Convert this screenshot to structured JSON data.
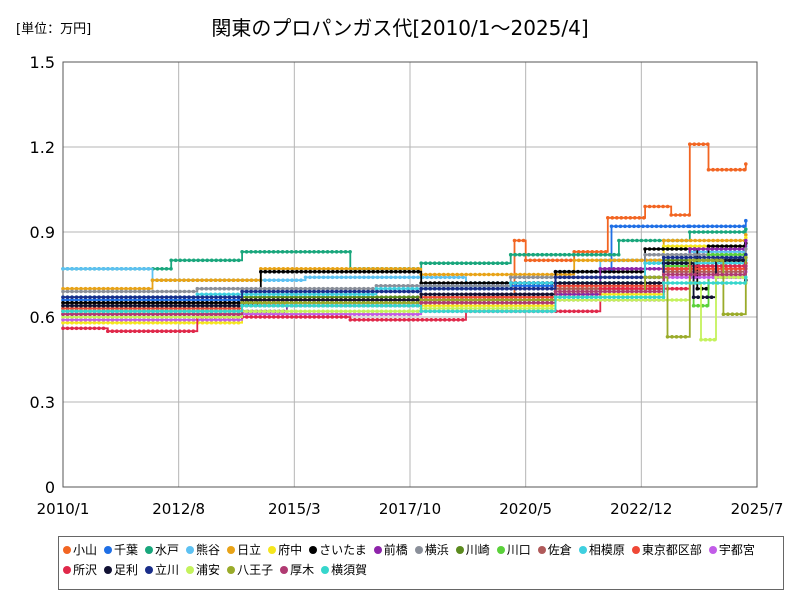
{
  "chart_data": {
    "type": "line",
    "title": "関東のプロパンガス代[2010/1～2025/4]",
    "unit_label": "[単位：万円]",
    "xlabel": "",
    "ylabel": "",
    "ylim": [
      0,
      1.5
    ],
    "y_ticks": [
      "0",
      "0.3",
      "0.6",
      "0.9",
      "1.2",
      "1.5"
    ],
    "x_ticks": [
      "2010/1",
      "2012/8",
      "2015/3",
      "2017/10",
      "2020/5",
      "2022/12",
      "2025/7"
    ],
    "x_range": [
      "2010/1",
      "2025/7"
    ],
    "grid": true,
    "legend_position": "bottom",
    "series": [
      {
        "name": "小山",
        "color": "#f26522",
        "points": [
          [
            "2010/1",
            0.65
          ],
          [
            "2015/1",
            0.66
          ],
          [
            "2019/6",
            0.67
          ],
          [
            "2020/2",
            0.87
          ],
          [
            "2020/5",
            0.8
          ],
          [
            "2021/6",
            0.83
          ],
          [
            "2022/3",
            0.95
          ],
          [
            "2023/1",
            0.99
          ],
          [
            "2023/8",
            0.96
          ],
          [
            "2024/1",
            1.21
          ],
          [
            "2024/6",
            1.12
          ],
          [
            "2025/4",
            1.14
          ]
        ]
      },
      {
        "name": "千葉",
        "color": "#1f6fe5",
        "points": [
          [
            "2010/1",
            0.66
          ],
          [
            "2014/1",
            0.69
          ],
          [
            "2018/1",
            0.71
          ],
          [
            "2021/1",
            0.76
          ],
          [
            "2022/4",
            0.92
          ],
          [
            "2024/1",
            0.92
          ],
          [
            "2025/4",
            0.94
          ]
        ]
      },
      {
        "name": "水戸",
        "color": "#19a67c",
        "points": [
          [
            "2010/1",
            0.77
          ],
          [
            "2012/6",
            0.8
          ],
          [
            "2014/1",
            0.83
          ],
          [
            "2016/6",
            0.77
          ],
          [
            "2018/1",
            0.79
          ],
          [
            "2020/1",
            0.82
          ],
          [
            "2022/6",
            0.87
          ],
          [
            "2024/1",
            0.9
          ],
          [
            "2025/4",
            0.91
          ]
        ]
      },
      {
        "name": "熊谷",
        "color": "#5dc1f2",
        "points": [
          [
            "2010/1",
            0.77
          ],
          [
            "2012/1",
            0.73
          ],
          [
            "2015/6",
            0.74
          ],
          [
            "2019/1",
            0.72
          ],
          [
            "2022/1",
            0.8
          ],
          [
            "2024/1",
            0.83
          ],
          [
            "2025/4",
            0.85
          ]
        ]
      },
      {
        "name": "日立",
        "color": "#e8a317",
        "points": [
          [
            "2010/1",
            0.7
          ],
          [
            "2012/1",
            0.73
          ],
          [
            "2014/6",
            0.77
          ],
          [
            "2018/1",
            0.75
          ],
          [
            "2021/6",
            0.8
          ],
          [
            "2023/6",
            0.87
          ],
          [
            "2025/4",
            0.89
          ]
        ]
      },
      {
        "name": "府中",
        "color": "#f5e61e",
        "points": [
          [
            "2010/1",
            0.58
          ],
          [
            "2014/1",
            0.61
          ],
          [
            "2018/1",
            0.64
          ],
          [
            "2021/1",
            0.68
          ],
          [
            "2023/6",
            0.85
          ],
          [
            "2025/4",
            0.88
          ]
        ]
      },
      {
        "name": "さいたま",
        "color": "#000000",
        "points": [
          [
            "2010/1",
            0.65
          ],
          [
            "2014/6",
            0.76
          ],
          [
            "2018/1",
            0.72
          ],
          [
            "2021/1",
            0.76
          ],
          [
            "2023/1",
            0.84
          ],
          [
            "2024/3",
            0.7
          ],
          [
            "2024/6",
            0.85
          ],
          [
            "2025/4",
            0.86
          ]
        ]
      },
      {
        "name": "前橋",
        "color": "#8e24aa",
        "points": [
          [
            "2010/1",
            0.62
          ],
          [
            "2015/1",
            0.66
          ],
          [
            "2019/1",
            0.68
          ],
          [
            "2022/1",
            0.77
          ],
          [
            "2024/1",
            0.84
          ],
          [
            "2025/4",
            0.87
          ]
        ]
      },
      {
        "name": "横浜",
        "color": "#8a8f99",
        "points": [
          [
            "2010/1",
            0.69
          ],
          [
            "2013/1",
            0.7
          ],
          [
            "2017/1",
            0.71
          ],
          [
            "2020/1",
            0.74
          ],
          [
            "2023/1",
            0.82
          ],
          [
            "2025/4",
            0.84
          ]
        ]
      },
      {
        "name": "川崎",
        "color": "#5b8a1e",
        "points": [
          [
            "2010/1",
            0.64
          ],
          [
            "2014/1",
            0.67
          ],
          [
            "2018/1",
            0.66
          ],
          [
            "2021/1",
            0.72
          ],
          [
            "2023/6",
            0.8
          ],
          [
            "2025/4",
            0.81
          ]
        ]
      },
      {
        "name": "川口",
        "color": "#5ad13a",
        "points": [
          [
            "2010/1",
            0.63
          ],
          [
            "2014/1",
            0.65
          ],
          [
            "2018/1",
            0.66
          ],
          [
            "2021/1",
            0.7
          ],
          [
            "2023/6",
            0.78
          ],
          [
            "2024/2",
            0.64
          ],
          [
            "2024/6",
            0.82
          ],
          [
            "2025/4",
            0.81
          ]
        ]
      },
      {
        "name": "佐倉",
        "color": "#b05a5a",
        "points": [
          [
            "2010/1",
            0.61
          ],
          [
            "2014/1",
            0.64
          ],
          [
            "2018/1",
            0.66
          ],
          [
            "2021/1",
            0.7
          ],
          [
            "2023/6",
            0.76
          ],
          [
            "2025/4",
            0.77
          ]
        ]
      },
      {
        "name": "相模原",
        "color": "#3fd0e0",
        "points": [
          [
            "2010/1",
            0.67
          ],
          [
            "2013/1",
            0.68
          ],
          [
            "2017/1",
            0.7
          ],
          [
            "2020/1",
            0.72
          ],
          [
            "2023/1",
            0.79
          ],
          [
            "2025/4",
            0.8
          ]
        ]
      },
      {
        "name": "東京都区部",
        "color": "#ef4836",
        "points": [
          [
            "2010/1",
            0.63
          ],
          [
            "2014/1",
            0.66
          ],
          [
            "2018/1",
            0.67
          ],
          [
            "2021/1",
            0.71
          ],
          [
            "2023/6",
            0.77
          ],
          [
            "2025/4",
            0.78
          ]
        ]
      },
      {
        "name": "宇都宮",
        "color": "#c25ce8",
        "points": [
          [
            "2010/1",
            0.59
          ],
          [
            "2014/1",
            0.61
          ],
          [
            "2018/1",
            0.62
          ],
          [
            "2021/1",
            0.66
          ],
          [
            "2023/6",
            0.74
          ],
          [
            "2025/4",
            0.76
          ]
        ]
      },
      {
        "name": "所沢",
        "color": "#e0284a",
        "points": [
          [
            "2010/1",
            0.56
          ],
          [
            "2011/1",
            0.55
          ],
          [
            "2013/1",
            0.6
          ],
          [
            "2016/6",
            0.59
          ],
          [
            "2019/1",
            0.62
          ],
          [
            "2022/1",
            0.7
          ],
          [
            "2024/1",
            0.78
          ],
          [
            "2025/4",
            0.79
          ]
        ]
      },
      {
        "name": "足利",
        "color": "#111133",
        "points": [
          [
            "2010/1",
            0.64
          ],
          [
            "2014/1",
            0.66
          ],
          [
            "2018/1",
            0.68
          ],
          [
            "2021/1",
            0.72
          ],
          [
            "2023/6",
            0.79
          ],
          [
            "2024/2",
            0.67
          ],
          [
            "2024/8",
            0.8
          ],
          [
            "2025/4",
            0.73
          ]
        ]
      },
      {
        "name": "立川",
        "color": "#1a2e8a",
        "points": [
          [
            "2010/1",
            0.67
          ],
          [
            "2014/1",
            0.69
          ],
          [
            "2018/1",
            0.7
          ],
          [
            "2021/1",
            0.74
          ],
          [
            "2023/6",
            0.81
          ],
          [
            "2025/4",
            0.82
          ]
        ]
      },
      {
        "name": "浦安",
        "color": "#c4f25c",
        "points": [
          [
            "2010/1",
            0.6
          ],
          [
            "2014/1",
            0.62
          ],
          [
            "2018/1",
            0.63
          ],
          [
            "2021/1",
            0.66
          ],
          [
            "2023/1",
            0.66
          ],
          [
            "2024/1",
            0.72
          ],
          [
            "2024/4",
            0.52
          ],
          [
            "2024/8",
            0.74
          ],
          [
            "2025/4",
            0.72
          ]
        ]
      },
      {
        "name": "八王子",
        "color": "#9aab2a",
        "points": [
          [
            "2010/1",
            0.62
          ],
          [
            "2014/1",
            0.65
          ],
          [
            "2018/1",
            0.66
          ],
          [
            "2021/1",
            0.69
          ],
          [
            "2023/1",
            0.74
          ],
          [
            "2023/7",
            0.53
          ],
          [
            "2024/1",
            0.8
          ],
          [
            "2024/10",
            0.61
          ],
          [
            "2025/4",
            0.81
          ]
        ]
      },
      {
        "name": "厚木",
        "color": "#b03a72",
        "points": [
          [
            "2010/1",
            0.61
          ],
          [
            "2014/1",
            0.64
          ],
          [
            "2018/1",
            0.65
          ],
          [
            "2021/1",
            0.69
          ],
          [
            "2023/6",
            0.75
          ],
          [
            "2025/4",
            0.78
          ]
        ]
      },
      {
        "name": "横須賀",
        "color": "#36d6cc",
        "points": [
          [
            "2010/1",
            0.62
          ],
          [
            "2014/1",
            0.64
          ],
          [
            "2018/1",
            0.62
          ],
          [
            "2021/1",
            0.67
          ],
          [
            "2023/6",
            0.72
          ],
          [
            "2025/4",
            0.74
          ]
        ]
      }
    ]
  }
}
